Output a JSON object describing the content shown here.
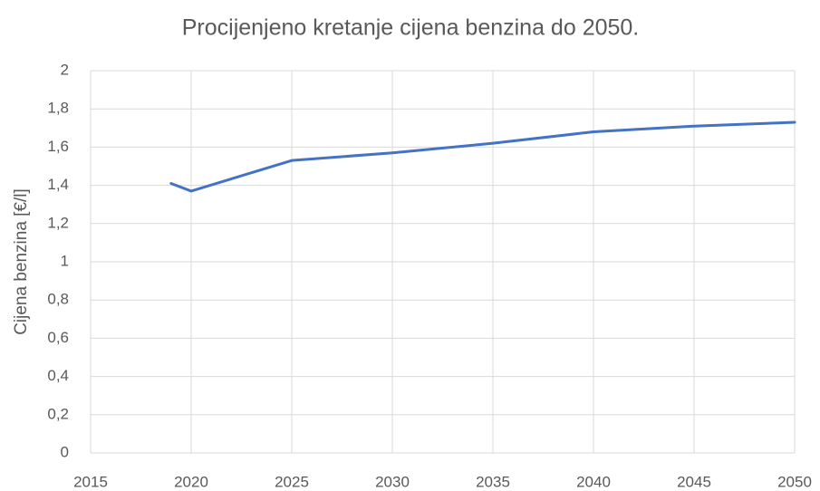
{
  "chart_data": {
    "type": "line",
    "title": "Procijenjeno kretanje cijena benzina do 2050.",
    "y_label": "Cijena benzina [€/l]",
    "x": [
      2019,
      2020,
      2025,
      2030,
      2035,
      2040,
      2045,
      2050
    ],
    "series": [
      {
        "name": "Cijena benzina",
        "color": "#4472c4",
        "values": [
          1.41,
          1.37,
          1.53,
          1.57,
          1.62,
          1.68,
          1.71,
          1.73
        ]
      }
    ],
    "xlim": [
      2015,
      2050
    ],
    "xticks": [
      2015,
      2020,
      2025,
      2030,
      2035,
      2040,
      2045,
      2050
    ],
    "ylim": [
      0,
      2
    ],
    "yticks": [
      0,
      {
        "value": 0.2,
        "label": "0,2"
      },
      {
        "value": 0.4,
        "label": "0,4"
      },
      {
        "value": 0.6,
        "label": "0,6"
      },
      {
        "value": 0.8,
        "label": "0,8"
      },
      1,
      {
        "value": 1.2,
        "label": "1,2"
      },
      {
        "value": 1.4,
        "label": "1,4"
      },
      {
        "value": 1.6,
        "label": "1,6"
      },
      {
        "value": 1.8,
        "label": "1,8"
      },
      2
    ],
    "grid": true
  }
}
